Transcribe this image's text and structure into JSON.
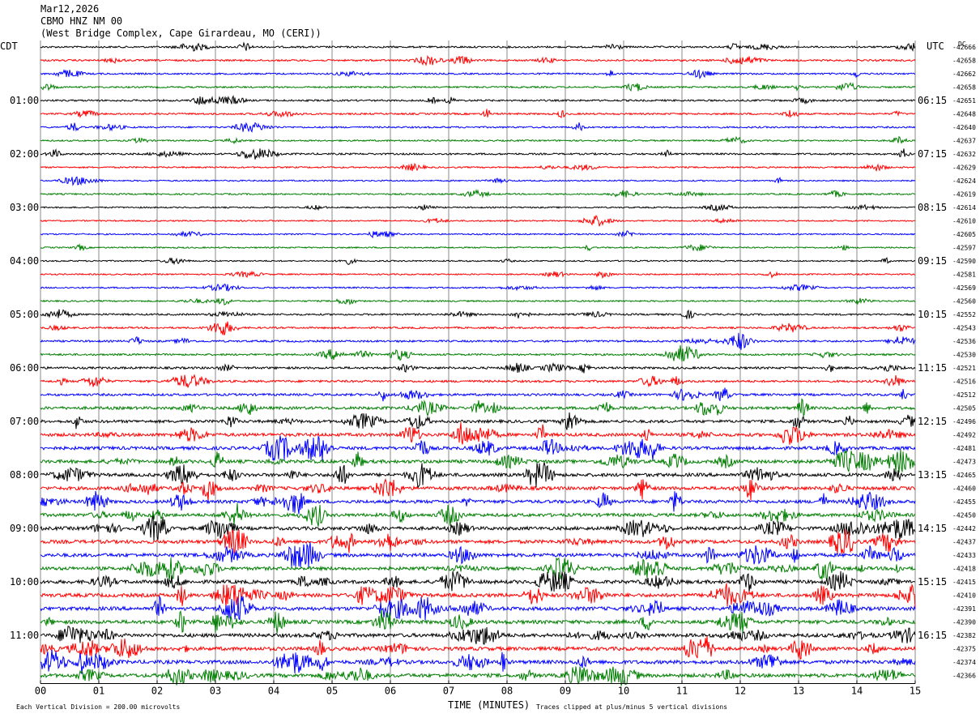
{
  "header": {
    "date": "Mar12,2026",
    "station": "CBMO HNZ NM 00",
    "location": "(West Bridge Complex, Cape Girardeau, MO (CERI))"
  },
  "chart_data": {
    "type": "line",
    "title": "",
    "xlabel": "TIME (MINUTES)",
    "left_axis_label": "CDT",
    "right_axis_label": "UTC",
    "dc_label": "DC",
    "xlim": [
      0,
      15
    ],
    "x_ticks": [
      "00",
      "01",
      "02",
      "03",
      "04",
      "05",
      "06",
      "07",
      "08",
      "09",
      "10",
      "11",
      "12",
      "13",
      "14",
      "15"
    ],
    "trace_colors": [
      "#000000",
      "#ff0000",
      "#0000ff",
      "#007f00"
    ],
    "left_time_labels": [
      "01:00",
      "02:00",
      "03:00",
      "04:00",
      "05:00",
      "06:00",
      "07:00",
      "08:00",
      "09:00",
      "10:00",
      "11:00"
    ],
    "right_time_labels": [
      "06:15",
      "07:15",
      "08:15",
      "09:15",
      "10:15",
      "11:15",
      "12:15",
      "13:15",
      "14:15",
      "15:15",
      "16:15"
    ],
    "dc_offsets": [
      "-42666",
      "-42658",
      "-42662",
      "-42658",
      "-42651",
      "-42648",
      "-42640",
      "-42637",
      "-42632",
      "-42629",
      "-42624",
      "-42619",
      "-42614",
      "-42610",
      "-42605",
      "-42597",
      "-42590",
      "-42581",
      "-42569",
      "-42560",
      "-42552",
      "-42543",
      "-42536",
      "-42530",
      "-42521",
      "-42516",
      "-42512",
      "-42505",
      "-42496",
      "-42492",
      "-42481",
      "-42473",
      "-42465",
      "-42460",
      "-42455",
      "-42450",
      "-42442",
      "-42437",
      "-42433",
      "-42418",
      "-42415",
      "-42410",
      "-42391",
      "-42390",
      "-42382",
      "-42375",
      "-42374",
      "-42366"
    ],
    "trace_activity": [
      0.3,
      0.3,
      0.25,
      0.25,
      0.3,
      0.3,
      0.25,
      0.2,
      0.3,
      0.2,
      0.15,
      0.2,
      0.15,
      0.15,
      0.15,
      0.15,
      0.15,
      0.15,
      0.2,
      0.2,
      0.3,
      0.3,
      0.35,
      0.35,
      0.45,
      0.45,
      0.5,
      0.7,
      0.7,
      0.85,
      0.85,
      0.9,
      0.9,
      0.9,
      0.85,
      0.85,
      0.9,
      0.95,
      0.95,
      0.9,
      0.95,
      1.0,
      1.0,
      1.0,
      1.0,
      1.0,
      1.0,
      1.0
    ],
    "footer_scale": "Each Vertical Division =  200.00 microvolts",
    "footer_clip": "Traces clipped at plus/minus 5 vertical divisions"
  }
}
